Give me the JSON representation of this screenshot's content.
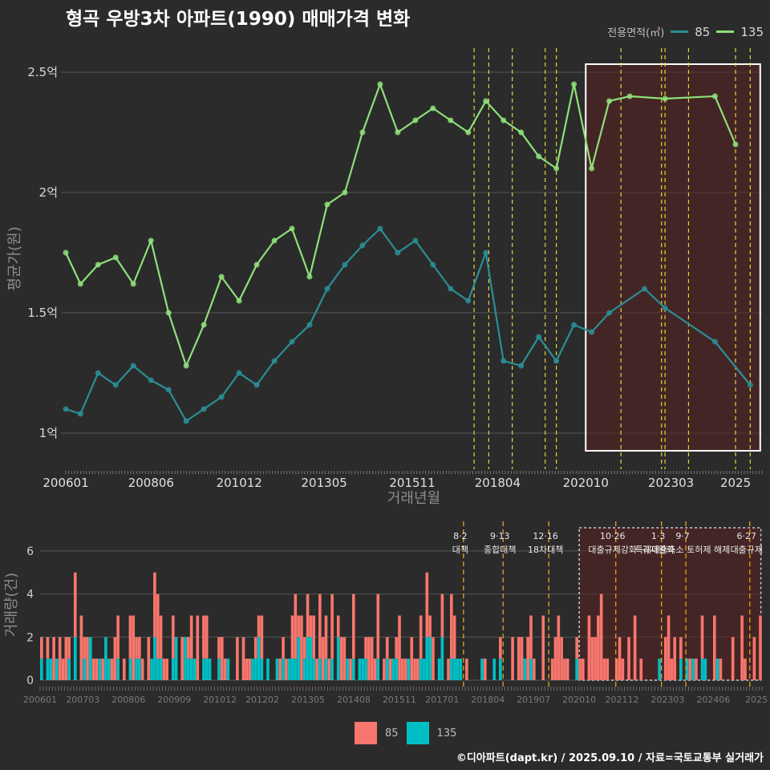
{
  "title": "형곡 우방3차 아파트(1990) 매매가격 변화",
  "legend_title": "전용면적(㎡)",
  "colors": {
    "s85_line": "#2a8f95",
    "s135_line": "#8ee07a",
    "bar85": "#f8766d",
    "bar135": "#00bfc4",
    "policy": "#e8d33a",
    "bg": "#2b2b2b",
    "grid": "#555555"
  },
  "credit": "©디아파트(dapt.kr) / 2025.09.10 / 자료=국토교통부 실거래가",
  "chart_data": [
    {
      "type": "line",
      "title": "형곡 우방3차 아파트(1990) 매매가격 변화",
      "xlabel": "거래년월",
      "ylabel": "평균가(원)",
      "ylim": [
        0.85,
        2.6
      ],
      "x_tick_labels": [
        "200601",
        "200806",
        "201012",
        "201305",
        "201511",
        "201804",
        "202010",
        "202303",
        "2025"
      ],
      "y_tick_labels": [
        "1억",
        "1.5억",
        "2억",
        "2.5억"
      ],
      "y_ticks": [
        1,
        1.5,
        2,
        2.5
      ],
      "series": [
        {
          "name": "85",
          "points": [
            [
              "2006-01",
              1.1
            ],
            [
              "2006-06",
              1.08
            ],
            [
              "2006-12",
              1.25
            ],
            [
              "2007-06",
              1.2
            ],
            [
              "2007-12",
              1.28
            ],
            [
              "2008-06",
              1.22
            ],
            [
              "2008-12",
              1.18
            ],
            [
              "2009-06",
              1.05
            ],
            [
              "2009-12",
              1.1
            ],
            [
              "2010-06",
              1.15
            ],
            [
              "2010-12",
              1.25
            ],
            [
              "2011-06",
              1.2
            ],
            [
              "2011-12",
              1.3
            ],
            [
              "2012-06",
              1.38
            ],
            [
              "2012-12",
              1.45
            ],
            [
              "2013-06",
              1.6
            ],
            [
              "2013-12",
              1.7
            ],
            [
              "2014-06",
              1.78
            ],
            [
              "2014-12",
              1.85
            ],
            [
              "2015-06",
              1.75
            ],
            [
              "2015-12",
              1.8
            ],
            [
              "2016-06",
              1.7
            ],
            [
              "2016-12",
              1.6
            ],
            [
              "2017-06",
              1.55
            ],
            [
              "2017-12",
              1.75
            ],
            [
              "2018-06",
              1.3
            ],
            [
              "2018-12",
              1.28
            ],
            [
              "2019-06",
              1.4
            ],
            [
              "2019-12",
              1.3
            ],
            [
              "2020-06",
              1.45
            ],
            [
              "2020-12",
              1.42
            ],
            [
              "2021-06",
              1.5
            ],
            [
              "2022-06",
              1.6
            ],
            [
              "2023-01",
              1.52
            ],
            [
              "2024-06",
              1.38
            ],
            [
              "2025-06",
              1.2
            ]
          ]
        },
        {
          "name": "135",
          "points": [
            [
              "2006-01",
              1.75
            ],
            [
              "2006-06",
              1.62
            ],
            [
              "2006-12",
              1.7
            ],
            [
              "2007-06",
              1.73
            ],
            [
              "2007-12",
              1.62
            ],
            [
              "2008-06",
              1.8
            ],
            [
              "2008-12",
              1.5
            ],
            [
              "2009-06",
              1.28
            ],
            [
              "2009-12",
              1.45
            ],
            [
              "2010-06",
              1.65
            ],
            [
              "2010-12",
              1.55
            ],
            [
              "2011-06",
              1.7
            ],
            [
              "2011-12",
              1.8
            ],
            [
              "2012-06",
              1.85
            ],
            [
              "2012-12",
              1.65
            ],
            [
              "2013-06",
              1.95
            ],
            [
              "2013-12",
              2.0
            ],
            [
              "2014-06",
              2.25
            ],
            [
              "2014-12",
              2.45
            ],
            [
              "2015-06",
              2.25
            ],
            [
              "2015-12",
              2.3
            ],
            [
              "2016-06",
              2.35
            ],
            [
              "2016-12",
              2.3
            ],
            [
              "2017-06",
              2.25
            ],
            [
              "2017-12",
              2.38
            ],
            [
              "2018-06",
              2.3
            ],
            [
              "2018-12",
              2.25
            ],
            [
              "2019-06",
              2.15
            ],
            [
              "2019-12",
              2.1
            ],
            [
              "2020-06",
              2.45
            ],
            [
              "2020-12",
              2.1
            ],
            [
              "2021-06",
              2.38
            ],
            [
              "2022-01",
              2.4
            ],
            [
              "2023-01",
              2.39
            ],
            [
              "2024-06",
              2.4
            ],
            [
              "2025-01",
              2.2
            ]
          ]
        }
      ]
    },
    {
      "type": "bar",
      "ylabel": "거래량(건)",
      "ylim": [
        0,
        7
      ],
      "y_tick_labels": [
        "0",
        "2",
        "4",
        "6"
      ],
      "x_tick_labels": [
        "200601",
        "200703",
        "200806",
        "200909",
        "201012",
        "201202",
        "201305",
        "201408",
        "201511",
        "201701",
        "201804",
        "201907",
        "202010",
        "202112",
        "202303",
        "202406",
        "2025"
      ],
      "series_names": [
        "85",
        "135"
      ],
      "policy_labels": [
        {
          "date": "2017-08",
          "text": "8·2 대책"
        },
        {
          "date": "2018-09",
          "text": "9·13 종합대책"
        },
        {
          "date": "2019-12",
          "text": "12·16 18차대책"
        },
        {
          "date": "2021-10",
          "text": "10·26 대출규제강화"
        },
        {
          "date": "2023-01",
          "text": "1·3 규제완화"
        },
        {
          "date": "2023-09",
          "text": "9·7 특례대출축소 토허제 해제"
        },
        {
          "date": "2025-06",
          "text": "6·27 대출규제"
        }
      ]
    }
  ]
}
